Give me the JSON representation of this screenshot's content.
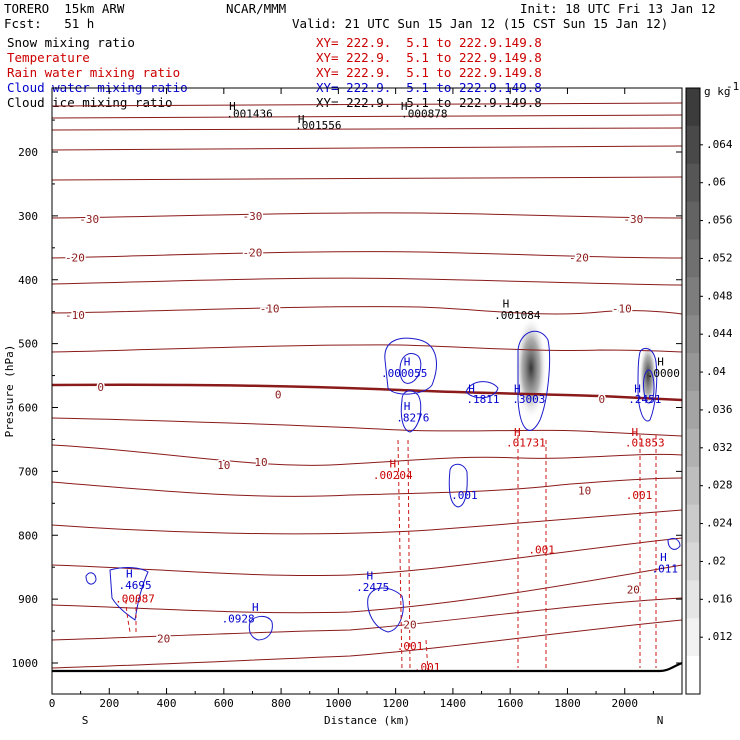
{
  "header": {
    "model": "TORERO  15km ARW",
    "center": "NCAR/MMM",
    "init": "Init: 18 UTC Fri 13 Jan 12",
    "fcst": "Fcst:   51 h",
    "valid": "Valid: 21 UTC Sun 15 Jan 12 (15 CST Sun 15 Jan 12)",
    "fields": [
      {
        "name": "Snow mixing ratio",
        "xy": "",
        "color": "#000000"
      },
      {
        "name": "Temperature",
        "xy": "XY= 222.9.  5.1 to 222.9.149.8",
        "color": "#cc0000"
      },
      {
        "name": "Rain water mixing ratio",
        "xy": "XY= 222.9.  5.1 to 222.9.149.8",
        "color": "#cc0000"
      },
      {
        "name": "Cloud water mixing ratio",
        "xy": "XY= 222.9.  5.1 to 222.9.149.8",
        "color": "#0000cc"
      },
      {
        "name": "Cloud ice mixing ratio",
        "xy": "XY= 222.9.  5.1 to 222.9.149.8",
        "color": "#000000"
      }
    ],
    "snow_xy": "XY= 222.9.  5.1 to 222.9.149.8"
  },
  "chart_data": {
    "type": "contour",
    "xlabel": "Distance (km)",
    "ylabel": "Pressure (hPa)",
    "xlim": [
      0,
      2200
    ],
    "ylim": [
      1050,
      100
    ],
    "x_ticks": [
      0,
      200,
      400,
      600,
      800,
      1000,
      1200,
      1400,
      1600,
      1800,
      2000
    ],
    "y_ticks": [
      200,
      300,
      400,
      500,
      600,
      700,
      800,
      900,
      1000
    ],
    "orientation_labels": {
      "left": "S",
      "right": "N"
    },
    "colorbar": {
      "unit": "g kg",
      "unit_exp": "-1",
      "ticks": [
        ".064",
        ".06",
        ".056",
        ".052",
        ".048",
        ".044",
        ".04",
        ".036",
        ".032",
        ".028",
        ".024",
        ".02",
        ".016",
        ".012"
      ]
    },
    "temperature_labels": [
      {
        "text": "-30",
        "x": 130,
        "p": 305
      },
      {
        "text": "-30",
        "x": 700,
        "p": 300
      },
      {
        "text": "-30",
        "x": 2030,
        "p": 305
      },
      {
        "text": "-20",
        "x": 80,
        "p": 365
      },
      {
        "text": "-20",
        "x": 700,
        "p": 357
      },
      {
        "text": "-20",
        "x": 1840,
        "p": 365
      },
      {
        "text": "-10",
        "x": 80,
        "p": 455
      },
      {
        "text": "-10",
        "x": 760,
        "p": 445
      },
      {
        "text": "-10",
        "x": 1990,
        "p": 445
      },
      {
        "text": "0",
        "x": 170,
        "p": 568
      },
      {
        "text": "0",
        "x": 790,
        "p": 580
      },
      {
        "text": "0",
        "x": 1920,
        "p": 587
      },
      {
        "text": "10",
        "x": 600,
        "p": 690
      },
      {
        "text": "10",
        "x": 730,
        "p": 685
      },
      {
        "text": "10",
        "x": 1860,
        "p": 730
      },
      {
        "text": "20",
        "x": 390,
        "p": 962
      },
      {
        "text": "20",
        "x": 1250,
        "p": 940
      },
      {
        "text": "20",
        "x": 2030,
        "p": 885
      }
    ],
    "maxima_labels": [
      {
        "text": ".001436",
        "x": 690,
        "p": 140,
        "color": "#000000"
      },
      {
        "text": ".001556",
        "x": 930,
        "p": 158,
        "color": "#000000"
      },
      {
        "text": ".000878",
        "x": 1300,
        "p": 140,
        "color": "#000000"
      },
      {
        "text": ".001084",
        "x": 1625,
        "p": 455,
        "color": "#000000"
      },
      {
        "text": ".000055",
        "x": 1230,
        "p": 546,
        "color": "#0000cc"
      },
      {
        "text": ".1811",
        "x": 1505,
        "p": 587,
        "color": "#0000cc"
      },
      {
        "text": ".3003",
        "x": 1665,
        "p": 587,
        "color": "#0000cc"
      },
      {
        "text": ".2451",
        "x": 2070,
        "p": 587,
        "color": "#0000cc"
      },
      {
        "text": ".0000",
        "x": 2135,
        "p": 546,
        "color": "#000000"
      },
      {
        "text": ".8276",
        "x": 1260,
        "p": 616,
        "color": "#0000cc"
      },
      {
        "text": ".01731",
        "x": 1655,
        "p": 655,
        "color": "#cc0000"
      },
      {
        "text": ".01853",
        "x": 2070,
        "p": 655,
        "color": "#cc0000"
      },
      {
        "text": ".00204",
        "x": 1190,
        "p": 706,
        "color": "#cc0000"
      },
      {
        "text": ".001",
        "x": 1440,
        "p": 737,
        "color": "#0000cc"
      },
      {
        "text": ".001",
        "x": 2050,
        "p": 737,
        "color": "#cc0000"
      },
      {
        "text": ".001",
        "x": 1710,
        "p": 822,
        "color": "#cc0000"
      },
      {
        "text": ".011",
        "x": 2140,
        "p": 852,
        "color": "#0000cc"
      },
      {
        "text": ".4695",
        "x": 290,
        "p": 878,
        "color": "#0000cc"
      },
      {
        "text": ".00087",
        "x": 290,
        "p": 899,
        "color": "#cc0000"
      },
      {
        "text": ".2475",
        "x": 1120,
        "p": 881,
        "color": "#0000cc"
      },
      {
        "text": ".0928",
        "x": 650,
        "p": 930,
        "color": "#0000cc"
      },
      {
        "text": ".001",
        "x": 1250,
        "p": 973,
        "color": "#cc0000"
      },
      {
        "text": ".001",
        "x": 1310,
        "p": 1006,
        "color": "#cc0000"
      }
    ],
    "high_markers": [
      {
        "x": 630,
        "p": 128,
        "color": "#000000"
      },
      {
        "x": 870,
        "p": 148,
        "color": "#000000"
      },
      {
        "x": 1230,
        "p": 128,
        "color": "#000000"
      },
      {
        "x": 1585,
        "p": 437,
        "color": "#000000"
      },
      {
        "x": 1240,
        "p": 528,
        "color": "#0000cc"
      },
      {
        "x": 1465,
        "p": 570,
        "color": "#0000cc"
      },
      {
        "x": 1625,
        "p": 570,
        "color": "#0000cc"
      },
      {
        "x": 2045,
        "p": 570,
        "color": "#0000cc"
      },
      {
        "x": 2125,
        "p": 528,
        "color": "#000000"
      },
      {
        "x": 1240,
        "p": 598,
        "color": "#0000cc"
      },
      {
        "x": 1625,
        "p": 638,
        "color": "#cc0000"
      },
      {
        "x": 2035,
        "p": 638,
        "color": "#cc0000"
      },
      {
        "x": 1190,
        "p": 688,
        "color": "#cc0000"
      },
      {
        "x": 2135,
        "p": 834,
        "color": "#0000cc"
      },
      {
        "x": 270,
        "p": 860,
        "color": "#0000cc"
      },
      {
        "x": 1110,
        "p": 863,
        "color": "#0000cc"
      },
      {
        "x": 710,
        "p": 912,
        "color": "#0000cc"
      }
    ]
  }
}
